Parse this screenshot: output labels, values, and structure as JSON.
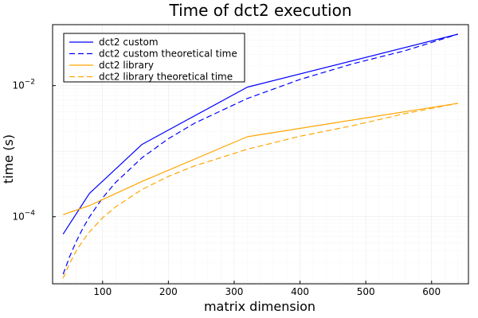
{
  "chart_data": {
    "type": "line",
    "title": "Time of dct2 execution",
    "xlabel": "matrix dimension",
    "ylabel": "time (s)",
    "xlim": [
      24,
      656
    ],
    "ylim": [
      9.5e-06,
      0.085
    ],
    "yscale": "log",
    "grid": true,
    "legend_position": "top-left",
    "x_ticks": [
      {
        "value": 100,
        "label": "100"
      },
      {
        "value": 200,
        "label": "200"
      },
      {
        "value": 300,
        "label": "300"
      },
      {
        "value": 400,
        "label": "400"
      },
      {
        "value": 500,
        "label": "500"
      },
      {
        "value": 600,
        "label": "600"
      }
    ],
    "y_ticks": [
      {
        "value": 0.0001,
        "base": "10",
        "exp": "−4"
      },
      {
        "value": 0.01,
        "base": "10",
        "exp": "−2"
      }
    ],
    "series": [
      {
        "name": "dct2 custom",
        "color": "#0000ff",
        "dash": "solid",
        "x": [
          40,
          80,
          160,
          320,
          640
        ],
        "y": [
          5.45e-05,
          0.000227,
          0.00127,
          0.00947,
          0.0608
        ]
      },
      {
        "name": "dct2 custom theoretical time",
        "color": "#0000ff",
        "dash": "dashed",
        "x": [
          40,
          50,
          60,
          70,
          80,
          100,
          120,
          160,
          200,
          240,
          320,
          400,
          480,
          560,
          640
        ],
        "y": [
          1.33e-05,
          2.48e-05,
          4.21e-05,
          6.67e-05,
          9.94e-05,
          0.000194,
          0.000335,
          0.000795,
          0.00155,
          0.00268,
          0.00636,
          0.0124,
          0.0215,
          0.0341,
          0.0608
        ]
      },
      {
        "name": "dct2 library",
        "color": "#ffa500",
        "dash": "solid",
        "x": [
          40,
          80,
          160,
          320,
          640
        ],
        "y": [
          0.000108,
          0.000148,
          0.000346,
          0.00166,
          0.00537
        ]
      },
      {
        "name": "dct2 library theoretical time",
        "color": "#ffa500",
        "dash": "dashed",
        "x": [
          40,
          50,
          60,
          70,
          80,
          100,
          120,
          160,
          200,
          240,
          320,
          400,
          480,
          560,
          640
        ],
        "y": [
          1.15e-05,
          1.95e-05,
          3.03e-05,
          4.31e-05,
          5.87e-05,
          9.63e-05,
          0.000142,
          0.000261,
          0.000413,
          0.000597,
          0.00107,
          0.00169,
          0.00245,
          0.00375,
          0.00537
        ]
      }
    ]
  }
}
